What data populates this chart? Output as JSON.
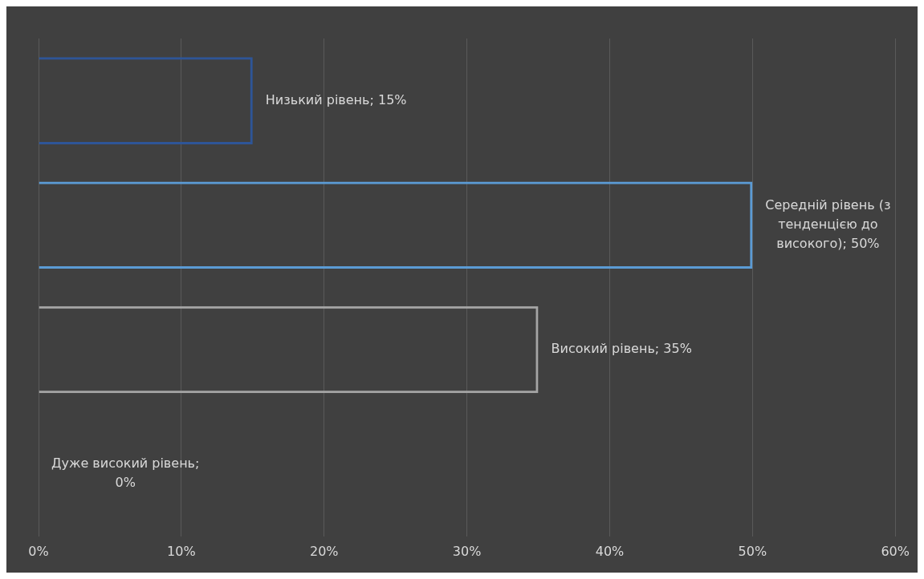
{
  "chart_data": {
    "type": "bar",
    "orientation": "horizontal",
    "categories": [
      null,
      null,
      null,
      null
    ],
    "values": [
      15,
      50,
      35,
      0
    ],
    "colors": [
      "#2e5597",
      "#5b9bd5",
      "#a5a5a5",
      "#7f7f7f"
    ],
    "value_labels": [
      "Низький рівень; 15%",
      "Середній рівень (з тенденцією до високого); 50%",
      "Високий рівень; 35%",
      "Дуже високий рівень; 0%"
    ],
    "xlim": [
      0,
      60
    ],
    "xticks": [
      {
        "value": 0,
        "label": "0%"
      },
      {
        "value": 10,
        "label": "10%"
      },
      {
        "value": 20,
        "label": "20%"
      },
      {
        "value": 30,
        "label": "30%"
      },
      {
        "value": 40,
        "label": "40%"
      },
      {
        "value": 50,
        "label": "50%"
      },
      {
        "value": 60,
        "label": "60%"
      }
    ],
    "grid": "x",
    "legend": false,
    "tick_labels": "x"
  }
}
